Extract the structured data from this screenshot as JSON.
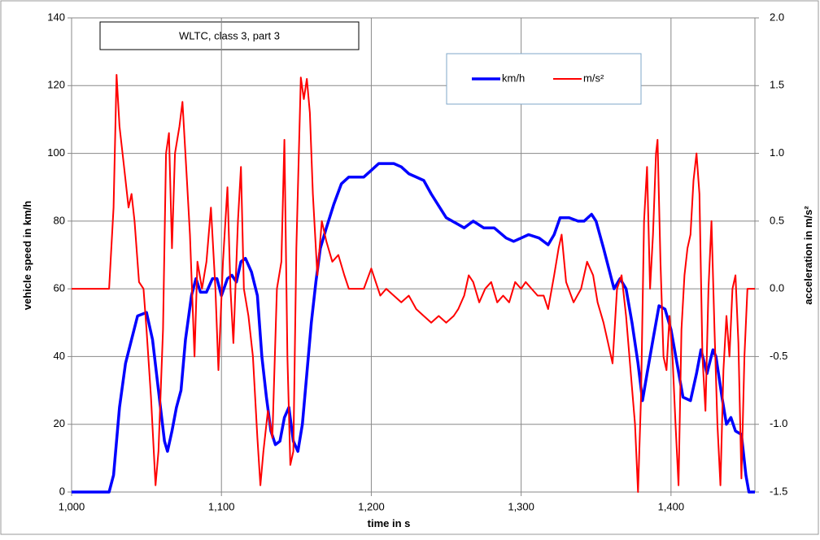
{
  "chart_data": {
    "type": "line",
    "title": "WLTC, class 3, part 3",
    "x_label": "time in s",
    "y_label": "vehicle speed in km/h",
    "y2_label": "acceleration in m/s²",
    "xlim": [
      1000,
      1456
    ],
    "xticks": [
      {
        "value": 1000,
        "label": "1,000"
      },
      {
        "value": 1100,
        "label": "1,100"
      },
      {
        "value": 1200,
        "label": "1,200"
      },
      {
        "value": 1300,
        "label": "1,300"
      },
      {
        "value": 1400,
        "label": "1,400"
      }
    ],
    "ylim": [
      0,
      140
    ],
    "yticks": [
      0,
      20,
      40,
      60,
      80,
      100,
      120,
      140
    ],
    "y2lim": [
      -1.5,
      2.0
    ],
    "y2ticks": [
      {
        "value": -1.5,
        "label": "-1.5"
      },
      {
        "value": -1.0,
        "label": "-1.0"
      },
      {
        "value": -0.5,
        "label": "-0.5"
      },
      {
        "value": 0,
        "label": "0.0"
      },
      {
        "value": 0.5,
        "label": "0.5"
      },
      {
        "value": 1.0,
        "label": "1.0"
      },
      {
        "value": 1.5,
        "label": "1.5"
      },
      {
        "value": 2.0,
        "label": "2.0"
      }
    ],
    "grid": true,
    "series": [
      {
        "name": "km/h",
        "color": "#0000ff",
        "axis": "y",
        "x": [
          1000,
          1025,
          1028,
          1032,
          1036,
          1040,
          1044,
          1050,
          1054,
          1058,
          1062,
          1064,
          1067,
          1070,
          1073,
          1076,
          1080,
          1083,
          1086,
          1090,
          1094,
          1097,
          1100,
          1104,
          1107,
          1110,
          1113,
          1116,
          1120,
          1124,
          1127,
          1130,
          1133,
          1136,
          1139,
          1142,
          1145,
          1148,
          1151,
          1154,
          1157,
          1160,
          1163,
          1166,
          1170,
          1175,
          1180,
          1185,
          1195,
          1200,
          1205,
          1215,
          1220,
          1225,
          1235,
          1240,
          1250,
          1258,
          1262,
          1268,
          1275,
          1282,
          1290,
          1295,
          1300,
          1305,
          1312,
          1318,
          1322,
          1326,
          1332,
          1338,
          1342,
          1347,
          1350,
          1355,
          1362,
          1366,
          1370,
          1374,
          1378,
          1381,
          1384,
          1388,
          1392,
          1396,
          1400,
          1404,
          1408,
          1413,
          1417,
          1420,
          1424,
          1428,
          1430,
          1434,
          1437,
          1440,
          1443,
          1447,
          1450,
          1452,
          1456
        ],
        "values": [
          0,
          0,
          5,
          25,
          38,
          45,
          52,
          53,
          45,
          30,
          15,
          12,
          18,
          25,
          30,
          45,
          58,
          63,
          59,
          59,
          63,
          63,
          58,
          63,
          64,
          62,
          68,
          69,
          65,
          58,
          40,
          28,
          18,
          14,
          15,
          22,
          25,
          15,
          12,
          20,
          35,
          50,
          62,
          72,
          78,
          85,
          91,
          93,
          93,
          95,
          97,
          97,
          96,
          94,
          92,
          88,
          81,
          79,
          78,
          80,
          78,
          78,
          75,
          74,
          75,
          76,
          75,
          73,
          76,
          81,
          81,
          80,
          80,
          82,
          80,
          72,
          60,
          63,
          60,
          50,
          38,
          27,
          35,
          45,
          55,
          54,
          48,
          38,
          28,
          27,
          35,
          42,
          35,
          42,
          40,
          28,
          20,
          22,
          18,
          17,
          5,
          0,
          0
        ]
      },
      {
        "name": "m/s²",
        "color": "#ff0000",
        "axis": "y2",
        "x": [
          1000,
          1025,
          1028,
          1030,
          1032,
          1035,
          1038,
          1040,
          1042,
          1045,
          1048,
          1050,
          1053,
          1056,
          1058,
          1061,
          1063,
          1065,
          1067,
          1069,
          1072,
          1074,
          1077,
          1079,
          1082,
          1084,
          1087,
          1090,
          1093,
          1096,
          1098,
          1101,
          1104,
          1106,
          1108,
          1111,
          1113,
          1115,
          1118,
          1121,
          1124,
          1126,
          1128,
          1131,
          1134,
          1137,
          1140,
          1142,
          1144,
          1146,
          1148,
          1150,
          1153,
          1155,
          1157,
          1159,
          1161,
          1164,
          1167,
          1170,
          1174,
          1178,
          1182,
          1185,
          1195,
          1200,
          1203,
          1206,
          1210,
          1215,
          1220,
          1225,
          1230,
          1235,
          1240,
          1245,
          1250,
          1255,
          1258,
          1262,
          1265,
          1268,
          1272,
          1276,
          1280,
          1284,
          1288,
          1292,
          1296,
          1300,
          1303,
          1307,
          1311,
          1315,
          1318,
          1322,
          1325,
          1327,
          1330,
          1335,
          1340,
          1344,
          1348,
          1351,
          1355,
          1358,
          1361,
          1364,
          1367,
          1370,
          1373,
          1376,
          1378,
          1380,
          1382,
          1384,
          1386,
          1388,
          1390,
          1391,
          1393,
          1395,
          1397,
          1399,
          1401,
          1403,
          1405,
          1407,
          1409,
          1411,
          1413,
          1415,
          1417,
          1419,
          1421,
          1423,
          1425,
          1427,
          1429,
          1431,
          1433,
          1435,
          1437,
          1439,
          1441,
          1443,
          1445,
          1447,
          1449,
          1451,
          1456
        ],
        "values": [
          0,
          0,
          0.6,
          1.58,
          1.2,
          0.9,
          0.6,
          0.7,
          0.5,
          0.05,
          0,
          -0.3,
          -0.8,
          -1.45,
          -1.2,
          -0.3,
          1.0,
          1.15,
          0.3,
          1.0,
          1.2,
          1.38,
          0.8,
          0.4,
          -0.5,
          0.2,
          0,
          0.2,
          0.6,
          0,
          -0.6,
          0.2,
          0.75,
          0,
          -0.4,
          0.5,
          0.9,
          0,
          -0.2,
          -0.5,
          -1.1,
          -1.45,
          -1.2,
          -0.9,
          -1.1,
          0,
          0.2,
          1.1,
          -0.5,
          -1.3,
          -1.2,
          0.3,
          1.56,
          1.4,
          1.55,
          1.3,
          0.7,
          0.1,
          0.5,
          0.35,
          0.2,
          0.25,
          0.1,
          0,
          0,
          0.15,
          0.05,
          -0.05,
          0,
          -0.05,
          -0.1,
          -0.05,
          -0.15,
          -0.2,
          -0.25,
          -0.2,
          -0.25,
          -0.2,
          -0.15,
          -0.05,
          0.1,
          0.05,
          -0.1,
          0,
          0.05,
          -0.1,
          -0.05,
          -0.1,
          0.05,
          0,
          0.05,
          0,
          -0.05,
          -0.05,
          -0.15,
          0.1,
          0.3,
          0.4,
          0.05,
          -0.1,
          0,
          0.2,
          0.1,
          -0.1,
          -0.25,
          -0.4,
          -0.55,
          0,
          0.1,
          -0.2,
          -0.6,
          -1.0,
          -1.5,
          -0.8,
          0.5,
          0.9,
          0,
          0.4,
          1.0,
          1.1,
          0.2,
          -0.5,
          -0.6,
          -0.2,
          -0.5,
          -1.0,
          -1.45,
          -0.3,
          0.1,
          0.3,
          0.4,
          0.8,
          1.0,
          0.7,
          -0.5,
          -0.9,
          0,
          0.5,
          -0.3,
          -1.0,
          -1.45,
          -0.6,
          -0.2,
          -0.5,
          0,
          0.1,
          -0.4,
          -1.4,
          -0.5,
          0,
          0
        ]
      }
    ]
  }
}
